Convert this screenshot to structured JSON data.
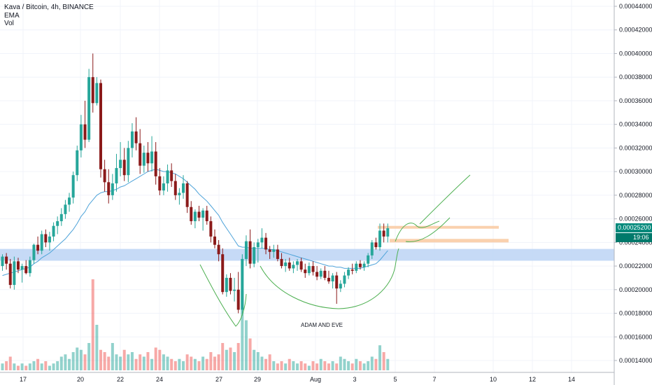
{
  "legend": {
    "symbol_line": "Kava / Bitcoin, 4h, BINANCE",
    "ema_label": "EMA",
    "vol_label": "Vol"
  },
  "price_tags": {
    "last_price": "0.00025200",
    "countdown": "19:06"
  },
  "annotation": "ADAM AND EVE",
  "colors": {
    "up": "#26a69a",
    "down": "#ef5350",
    "candle_up": "#26a69a",
    "candle_down": "#8b1a1a",
    "ema": "#4ea3d9",
    "support_zone": "#bcd4f5",
    "resistance_zone": "#f9c9a0",
    "pattern_line": "#4caf50",
    "price_tag": "#00897b",
    "countdown_tag": "#00796b"
  },
  "chart_data": {
    "type": "candlestick",
    "symbol": "Kava / Bitcoin",
    "timeframe": "4h",
    "exchange": "BINANCE",
    "x_tick_labels": [
      "17",
      "20",
      "22",
      "24",
      "27",
      "29",
      "Aug",
      "3",
      "5",
      "7",
      "10",
      "12",
      "14"
    ],
    "y_tick_labels": [
      "0.00014000",
      "0.00016000",
      "0.00018000",
      "0.00020000",
      "0.00022000",
      "0.00024000",
      "0.00026000",
      "0.00028000",
      "0.00030000",
      "0.00032000",
      "0.00034000",
      "0.00036000",
      "0.00038000",
      "0.00040000",
      "0.00042000",
      "0.00044000"
    ],
    "ylim": [
      0.0001335,
      0.0004465
    ],
    "last_price": 0.000252,
    "candles": [
      [
        0.00022,
        0.00023,
        0.000216,
        0.000228
      ],
      [
        0.000228,
        0.000231,
        0.000217,
        0.000222
      ],
      [
        0.000222,
        0.000226,
        0.000201,
        0.000204
      ],
      [
        0.000204,
        0.000228,
        0.0002,
        0.000224
      ],
      [
        0.000224,
        0.000227,
        0.000214,
        0.000217
      ],
      [
        0.000217,
        0.000222,
        0.000206,
        0.00022
      ],
      [
        0.00022,
        0.000225,
        0.000213,
        0.000214
      ],
      [
        0.000214,
        0.000228,
        0.000211,
        0.000225
      ],
      [
        0.000225,
        0.000239,
        0.000222,
        0.000238
      ],
      [
        0.000238,
        0.000245,
        0.00023,
        0.000233
      ],
      [
        0.000233,
        0.00025,
        0.00023,
        0.000247
      ],
      [
        0.000247,
        0.000251,
        0.000236,
        0.00024
      ],
      [
        0.00024,
        0.000249,
        0.000233,
        0.000245
      ],
      [
        0.000245,
        0.000257,
        0.000241,
        0.000254
      ],
      [
        0.000254,
        0.000262,
        0.000247,
        0.000258
      ],
      [
        0.000258,
        0.000269,
        0.000254,
        0.000264
      ],
      [
        0.000264,
        0.000276,
        0.00026,
        0.000272
      ],
      [
        0.000272,
        0.000282,
        0.000266,
        0.000278
      ],
      [
        0.000278,
        0.0003,
        0.000273,
        0.000297
      ],
      [
        0.000297,
        0.000322,
        0.000292,
        0.000318
      ],
      [
        0.000318,
        0.000348,
        0.000312,
        0.00034
      ],
      [
        0.00034,
        0.00036,
        0.00032,
        0.000327
      ],
      [
        0.000327,
        0.000387,
        0.000325,
        0.00038
      ],
      [
        0.00038,
        0.0004,
        0.00035,
        0.000358
      ],
      [
        0.000358,
        0.00038,
        0.000356,
        0.000375
      ],
      [
        0.000375,
        0.000378,
        0.000295,
        0.000302
      ],
      [
        0.000302,
        0.00031,
        0.000283,
        0.000291
      ],
      [
        0.000291,
        0.000302,
        0.000273,
        0.00028
      ],
      [
        0.00028,
        0.000298,
        0.000276,
        0.00029
      ],
      [
        0.00029,
        0.000315,
        0.000283,
        0.000303
      ],
      [
        0.000303,
        0.000325,
        0.000296,
        0.00031
      ],
      [
        0.00031,
        0.00032,
        0.000292,
        0.000297
      ],
      [
        0.000297,
        0.000326,
        0.000291,
        0.00032
      ],
      [
        0.00032,
        0.000341,
        0.000312,
        0.000334
      ],
      [
        0.000334,
        0.000346,
        0.000318,
        0.000324
      ],
      [
        0.000324,
        0.000336,
        0.000298,
        0.000305
      ],
      [
        0.000305,
        0.000322,
        0.000299,
        0.000316
      ],
      [
        0.000316,
        0.000325,
        0.0003,
        0.000307
      ],
      [
        0.000307,
        0.00033,
        0.0003,
        0.000317
      ],
      [
        0.000317,
        0.000325,
        0.000289,
        0.000296
      ],
      [
        0.000296,
        0.000303,
        0.00028,
        0.000284
      ],
      [
        0.000284,
        0.000296,
        0.00028,
        0.00029
      ],
      [
        0.00029,
        0.000306,
        0.000283,
        0.000301
      ],
      [
        0.000301,
        0.000307,
        0.000287,
        0.000292
      ],
      [
        0.000292,
        0.000298,
        0.000276,
        0.00028
      ],
      [
        0.00028,
        0.000286,
        0.000272,
        0.000282
      ],
      [
        0.000282,
        0.000297,
        0.000277,
        0.00029
      ],
      [
        0.00029,
        0.000292,
        0.000265,
        0.00027
      ],
      [
        0.00027,
        0.000275,
        0.000255,
        0.000258
      ],
      [
        0.000258,
        0.000268,
        0.000252,
        0.000266
      ],
      [
        0.000266,
        0.000271,
        0.000258,
        0.000261
      ],
      [
        0.000261,
        0.000269,
        0.00025,
        0.000267
      ],
      [
        0.000267,
        0.000271,
        0.000255,
        0.000258
      ],
      [
        0.000258,
        0.000262,
        0.00024,
        0.000245
      ],
      [
        0.000245,
        0.000251,
        0.000235,
        0.000238
      ],
      [
        0.000238,
        0.000242,
        0.000224,
        0.00023
      ],
      [
        0.00023,
        0.000235,
        0.000196,
        0.000198
      ],
      [
        0.000198,
        0.000213,
        0.000194,
        0.00021
      ],
      [
        0.00021,
        0.000214,
        0.000196,
        0.000199
      ],
      [
        0.000199,
        0.00021,
        0.00019,
        0.0002
      ],
      [
        0.0002,
        0.000215,
        0.00018,
        0.000183
      ],
      [
        0.000183,
        0.00023,
        0.000178,
        0.000226
      ],
      [
        0.000226,
        0.000246,
        0.00022,
        0.000241
      ],
      [
        0.000241,
        0.000251,
        0.000218,
        0.000222
      ],
      [
        0.000222,
        0.00024,
        0.000219,
        0.000236
      ],
      [
        0.000236,
        0.000243,
        0.000223,
        0.00024
      ],
      [
        0.00024,
        0.000252,
        0.000235,
        0.000244
      ],
      [
        0.000244,
        0.000248,
        0.00023,
        0.000234
      ],
      [
        0.000234,
        0.000237,
        0.000226,
        0.000232
      ],
      [
        0.000232,
        0.000238,
        0.000227,
        0.000234
      ],
      [
        0.000234,
        0.000238,
        0.000224,
        0.000226
      ],
      [
        0.000226,
        0.000231,
        0.000218,
        0.00022
      ],
      [
        0.00022,
        0.000226,
        0.000215,
        0.000223
      ],
      [
        0.000223,
        0.000227,
        0.000216,
        0.000218
      ],
      [
        0.000218,
        0.000224,
        0.000214,
        0.000221
      ],
      [
        0.000221,
        0.000226,
        0.000216,
        0.000224
      ],
      [
        0.000224,
        0.000227,
        0.000215,
        0.000217
      ],
      [
        0.000217,
        0.000222,
        0.00021,
        0.000214
      ],
      [
        0.000214,
        0.000223,
        0.000212,
        0.00022
      ],
      [
        0.00022,
        0.000224,
        0.000212,
        0.000215
      ],
      [
        0.000215,
        0.00022,
        0.000208,
        0.000211
      ],
      [
        0.000211,
        0.000218,
        0.000209,
        0.000216
      ],
      [
        0.000216,
        0.00022,
        0.000208,
        0.00021
      ],
      [
        0.00021,
        0.000216,
        0.000205,
        0.000207
      ],
      [
        0.000207,
        0.000214,
        0.000201,
        0.000212
      ],
      [
        0.000212,
        0.000215,
        0.000188,
        0.000201
      ],
      [
        0.000201,
        0.000208,
        0.000198,
        0.000205
      ],
      [
        0.000205,
        0.000215,
        0.000202,
        0.000212
      ],
      [
        0.000212,
        0.000219,
        0.000209,
        0.000217
      ],
      [
        0.000217,
        0.000222,
        0.000213,
        0.000216
      ],
      [
        0.000216,
        0.000224,
        0.000214,
        0.000222
      ],
      [
        0.000222,
        0.000225,
        0.000217,
        0.000219
      ],
      [
        0.000219,
        0.000224,
        0.000216,
        0.000222
      ],
      [
        0.000222,
        0.000231,
        0.000219,
        0.000229
      ],
      [
        0.000229,
        0.000242,
        0.000226,
        0.00024
      ],
      [
        0.00024,
        0.000244,
        0.000234,
        0.000236
      ],
      [
        0.000236,
        0.000256,
        0.000233,
        0.00025
      ],
      [
        0.00025,
        0.000256,
        0.00024,
        0.000245
      ],
      [
        0.000245,
        0.000256,
        0.00024,
        0.000252
      ]
    ],
    "ema": [
      0.000212,
      0.000213,
      0.000214,
      0.000215,
      0.000216,
      0.000217,
      0.000218,
      0.000219,
      0.000222,
      0.000224,
      0.000227,
      0.000229,
      0.000231,
      0.000234,
      0.000237,
      0.00024,
      0.000243,
      0.000247,
      0.000251,
      0.000256,
      0.000262,
      0.000266,
      0.000272,
      0.000276,
      0.00028,
      0.000282,
      0.000283,
      0.000283,
      0.000284,
      0.000285,
      0.000287,
      0.000288,
      0.00029,
      0.000292,
      0.000294,
      0.000296,
      0.000298,
      0.0003,
      0.000301,
      0.000302,
      0.000301,
      0.0003,
      0.0003,
      0.000299,
      0.000298,
      0.000296,
      0.000294,
      0.000291,
      0.000288,
      0.000285,
      0.000281,
      0.000278,
      0.000275,
      0.000271,
      0.000267,
      0.000263,
      0.000257,
      0.000252,
      0.000247,
      0.000242,
      0.000237,
      0.000236,
      0.000236,
      0.000235,
      0.000235,
      0.000235,
      0.000235,
      0.000235,
      0.000234,
      0.000234,
      0.000233,
      0.000232,
      0.000231,
      0.00023,
      0.000229,
      0.000228,
      0.000227,
      0.000226,
      0.000225,
      0.000224,
      0.000223,
      0.000222,
      0.000221,
      0.00022,
      0.00022,
      0.000219,
      0.000219,
      0.000218,
      0.000218,
      0.000218,
      0.000218,
      0.000218,
      0.000219,
      0.00022,
      0.000221,
      0.000222,
      0.000225,
      0.000229,
      0.000233
    ],
    "volume": [
      3,
      4,
      6,
      3,
      2,
      3,
      2,
      3,
      4,
      5,
      3,
      4,
      2,
      3,
      4,
      6,
      7,
      5,
      8,
      10,
      9,
      7,
      12,
      40,
      20,
      9,
      8,
      6,
      12,
      7,
      6,
      9,
      7,
      8,
      5,
      7,
      6,
      8,
      5,
      10,
      9,
      7,
      6,
      5,
      4,
      5,
      4,
      7,
      6,
      5,
      4,
      6,
      5,
      8,
      6,
      7,
      12,
      9,
      10,
      8,
      12,
      35,
      22,
      14,
      9,
      8,
      6,
      5,
      7,
      4,
      3,
      4,
      3,
      5,
      4,
      3,
      4,
      3,
      2,
      4,
      3,
      5,
      4,
      3,
      4,
      3,
      6,
      5,
      4,
      3,
      5,
      4,
      3,
      4,
      6,
      5,
      11,
      8,
      5
    ],
    "zones": [
      {
        "name": "support",
        "from": 0.0002245,
        "to": 0.0002345
      },
      {
        "name": "resistance-upper",
        "from": 0.000252,
        "to": 0.000254
      },
      {
        "name": "resistance-lower",
        "from": 0.00024,
        "to": 0.000243
      }
    ]
  }
}
